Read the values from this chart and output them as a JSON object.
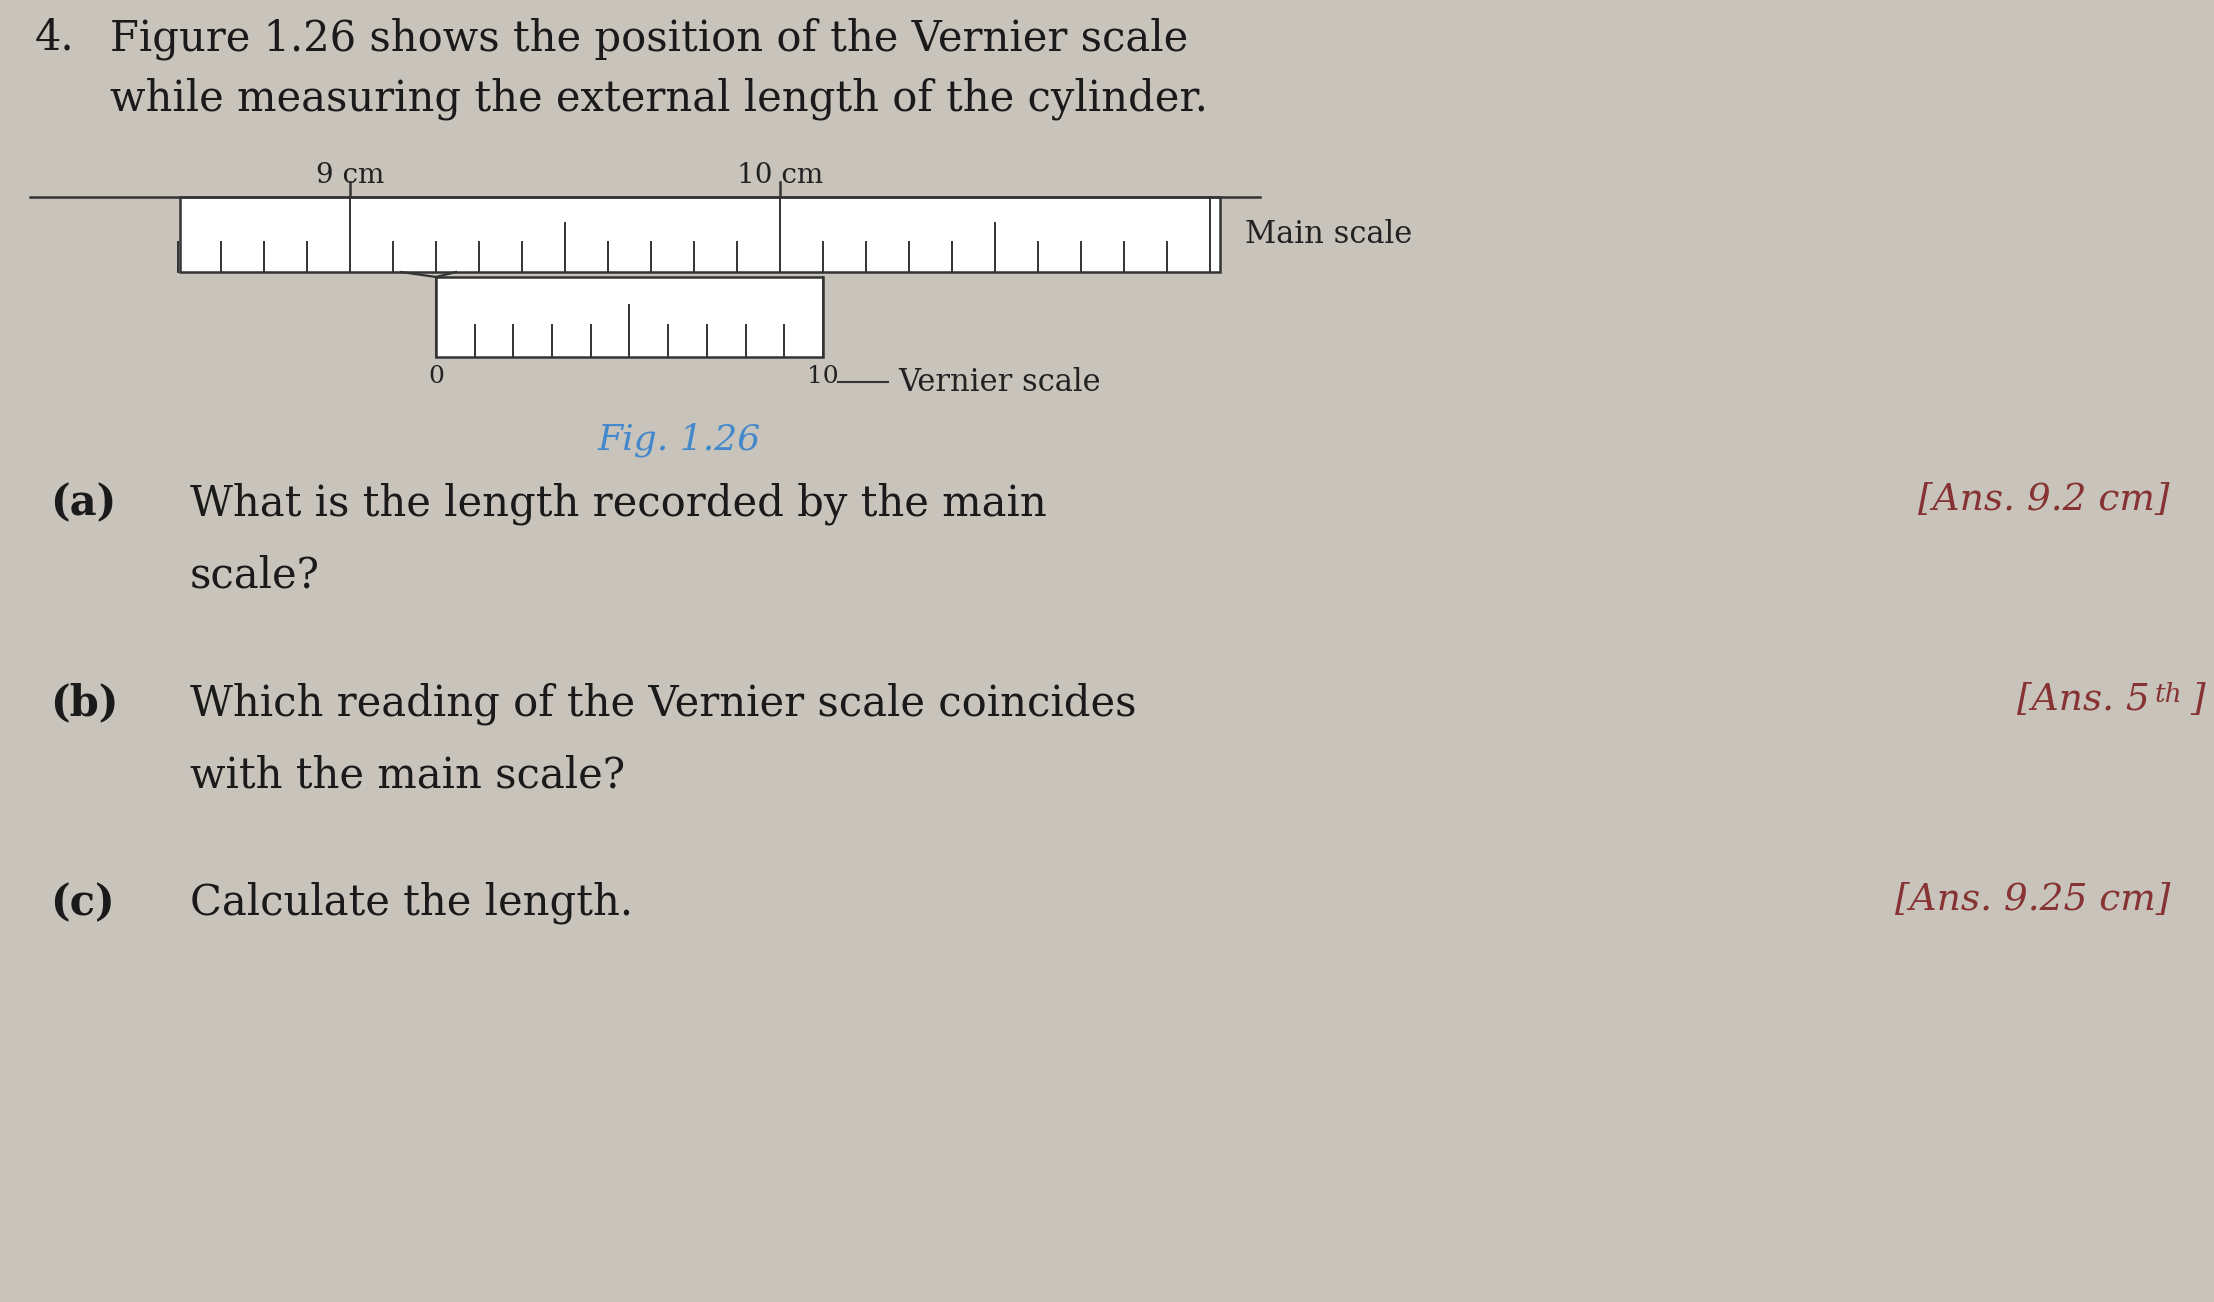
{
  "bg_color": "#c8c4bc",
  "title_number": "4.",
  "title_line1": "Figure 1.26 shows the position of the Vernier scale",
  "title_line2": "while measuring the external length of the cylinder.",
  "title_fontsize": 30,
  "title_color": "#1a1a1a",
  "fig_caption": "Fig. 1.26",
  "fig_caption_color": "#4488cc",
  "fig_caption_fontsize": 26,
  "main_scale_label": "Main scale",
  "vernier_scale_label": "Vernier scale",
  "label_9cm": "9 cm",
  "label_10cm": "10 cm",
  "label_0": "0",
  "label_10": "10",
  "qa_color": "#1a1a1a",
  "qa_fontsize": 30,
  "ans_color": "#883333",
  "ans_fontsize": 27,
  "qa": [
    {
      "letter": "(a)",
      "question": "What is the length recorded by the main\nscale?",
      "answer": "[Ans. 9.2 cm]"
    },
    {
      "letter": "(b)",
      "question": "Which reading of the Vernier scale coincides\nwith the main scale?",
      "answer": "[Ans. 5th]"
    },
    {
      "letter": "(c)",
      "question": "Calculate the length.",
      "answer": "[Ans. 9.25 cm]"
    }
  ]
}
